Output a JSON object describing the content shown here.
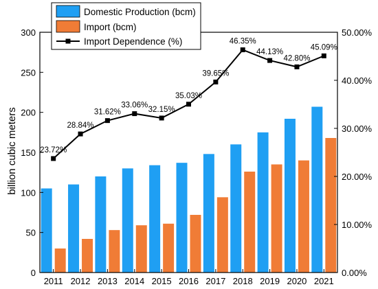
{
  "chart_data": {
    "type": "bar",
    "categories": [
      "2011",
      "2012",
      "2013",
      "2014",
      "2015",
      "2016",
      "2017",
      "2018",
      "2019",
      "2020",
      "2021"
    ],
    "series": [
      {
        "name": "Domestic Production (bcm)",
        "type": "bar",
        "axis": "left",
        "color": "#1f9ff3",
        "values": [
          105,
          110,
          120,
          130,
          134,
          137,
          148,
          160,
          175,
          192,
          207
        ]
      },
      {
        "name": "Import (bcm)",
        "type": "bar",
        "axis": "left",
        "color": "#f07c36",
        "values": [
          30,
          42,
          53,
          59,
          61,
          72,
          94,
          126,
          135,
          140,
          168
        ]
      },
      {
        "name": "Import Dependence (%)",
        "type": "line",
        "axis": "right",
        "color": "#000000",
        "values": [
          23.72,
          28.84,
          31.62,
          33.06,
          32.15,
          35.03,
          39.65,
          46.35,
          44.13,
          42.8,
          45.09
        ],
        "labels": [
          "23.72%",
          "28.84%",
          "31.62%",
          "33.06%",
          "32.15%",
          "35.03%",
          "39.65%",
          "46.35%",
          "44.13%",
          "42.80%",
          "45.09%"
        ]
      }
    ],
    "title": "",
    "ylabel": "billion cubic meters",
    "ylim": [
      0,
      300
    ],
    "y_ticks": [
      "0",
      "50",
      "100",
      "150",
      "200",
      "250",
      "300"
    ],
    "y2lim": [
      0,
      50
    ],
    "y2_ticks": [
      "0.00%",
      "10.00%",
      "20.00%",
      "30.00%",
      "40.00%",
      "50.00%"
    ],
    "legend_position": "top-left",
    "grid": false
  }
}
